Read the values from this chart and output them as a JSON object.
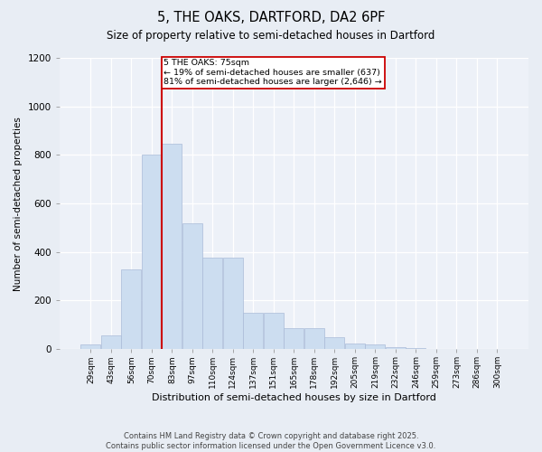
{
  "title": "5, THE OAKS, DARTFORD, DA2 6PF",
  "subtitle": "Size of property relative to semi-detached houses in Dartford",
  "xlabel": "Distribution of semi-detached houses by size in Dartford",
  "ylabel": "Number of semi-detached properties",
  "categories": [
    "29sqm",
    "43sqm",
    "56sqm",
    "70sqm",
    "83sqm",
    "97sqm",
    "110sqm",
    "124sqm",
    "137sqm",
    "151sqm",
    "165sqm",
    "178sqm",
    "192sqm",
    "205sqm",
    "219sqm",
    "232sqm",
    "246sqm",
    "259sqm",
    "273sqm",
    "286sqm",
    "300sqm"
  ],
  "values": [
    20,
    55,
    330,
    800,
    845,
    520,
    375,
    375,
    150,
    150,
    85,
    85,
    50,
    22,
    18,
    8,
    4,
    2,
    1,
    1,
    0
  ],
  "bar_color": "#ccddf0",
  "bar_edge_color": "#aabbd8",
  "vline_color": "#cc0000",
  "property_label": "5 THE OAKS: 75sqm",
  "annotation_line1": "← 19% of semi-detached houses are smaller (637)",
  "annotation_line2": "81% of semi-detached houses are larger (2,646) →",
  "ylim": [
    0,
    1200
  ],
  "yticks": [
    0,
    200,
    400,
    600,
    800,
    1000,
    1200
  ],
  "footer_line1": "Contains HM Land Registry data © Crown copyright and database right 2025.",
  "footer_line2": "Contains public sector information licensed under the Open Government Licence v3.0.",
  "bg_color": "#e8edf4",
  "plot_bg_color": "#edf1f8",
  "vline_position": 3.5
}
